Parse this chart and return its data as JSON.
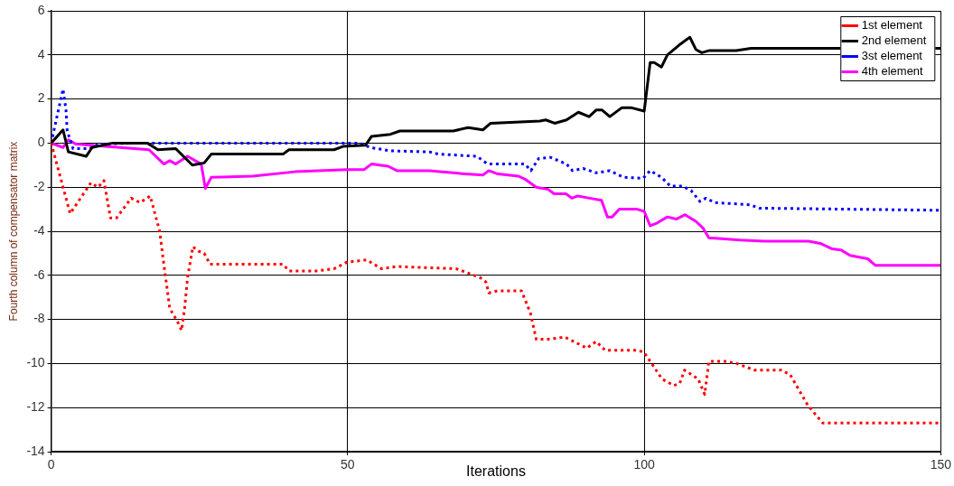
{
  "chart_data": {
    "type": "line",
    "xlabel": "Iterations",
    "ylabel": "Fourth column of compensator matrix",
    "xlim": [
      0,
      150
    ],
    "ylim": [
      -14,
      6
    ],
    "xticks": [
      0,
      50,
      100,
      150
    ],
    "yticks": [
      -14,
      -12,
      -10,
      -8,
      -6,
      -4,
      -2,
      0,
      2,
      4,
      6
    ],
    "grid": true,
    "legend": "top right",
    "marker": "none",
    "series": [
      {
        "name": "1st element",
        "color": "#ff0000",
        "line_style": "dotted",
        "x": [
          0,
          3.2,
          6.7,
          7.9,
          8.9,
          10,
          11,
          13.5,
          15,
          16.7,
          18.3,
          19,
          20,
          21.3,
          22,
          22.5,
          23,
          23.9,
          24.8,
          25.8,
          26.8,
          39.1,
          40.1,
          44.7,
          47.7,
          49.9,
          53.2,
          55.7,
          58.3,
          68.3,
          72.3,
          73.3,
          73.8,
          75.3,
          79.3,
          80.8,
          81.8,
          83.8,
          86.6,
          90.3,
          91.9,
          93.4,
          96.9,
          98.9,
          100,
          103,
          105,
          106,
          106.8,
          109.1,
          110.2,
          110.9,
          113.6,
          115.6,
          118.6,
          123.1,
          124.6,
          127.6,
          130.1,
          150
        ],
        "values": [
          0,
          -3.2,
          -1.8,
          -2,
          -1.7,
          -3.4,
          -3.4,
          -2.5,
          -2.7,
          -2.4,
          -4,
          -5.5,
          -7.5,
          -8.1,
          -8.5,
          -7.5,
          -6.1,
          -4.7,
          -4.9,
          -5,
          -5.5,
          -5.5,
          -5.8,
          -5.8,
          -5.7,
          -5.4,
          -5.3,
          -5.7,
          -5.6,
          -5.7,
          -6.1,
          -6.3,
          -6.8,
          -6.7,
          -6.7,
          -7.7,
          -8.9,
          -8.9,
          -8.8,
          -9.3,
          -9,
          -9.4,
          -9.4,
          -9.4,
          -9.5,
          -10.7,
          -11,
          -10.9,
          -10.3,
          -10.7,
          -11.4,
          -9.9,
          -9.9,
          -10,
          -10.3,
          -10.3,
          -10.5,
          -11.9,
          -12.7,
          -12.7
        ]
      },
      {
        "name": "2nd element",
        "color": "#000000",
        "line_style": "solid",
        "x": [
          0,
          2,
          2.9,
          5.9,
          6.9,
          10.4,
          16.2,
          18,
          21,
          23.8,
          25.8,
          27,
          39.1,
          40.1,
          47.7,
          49.2,
          53,
          54,
          57.2,
          58.8,
          67.8,
          70.3,
          72.8,
          74.1,
          82.4,
          83.4,
          84.9,
          86.9,
          88.9,
          90.7,
          91.9,
          92.9,
          94.2,
          96.2,
          97.9,
          100,
          101,
          101.7,
          102.9,
          103.9,
          105.9,
          107.7,
          108.7,
          109.7,
          111,
          115.5,
          118,
          150
        ],
        "values": [
          0,
          0.6,
          -0.4,
          -0.6,
          -0.2,
          0,
          0,
          -0.3,
          -0.25,
          -1,
          -0.9,
          -0.5,
          -0.5,
          -0.3,
          -0.3,
          -0.15,
          -0.1,
          0.3,
          0.4,
          0.55,
          0.55,
          0.7,
          0.6,
          0.9,
          1,
          1.05,
          0.9,
          1.05,
          1.4,
          1.2,
          1.5,
          1.5,
          1.2,
          1.6,
          1.6,
          1.45,
          3.65,
          3.65,
          3.45,
          4,
          4.45,
          4.8,
          4.25,
          4.1,
          4.2,
          4.2,
          4.3,
          4.3
        ]
      },
      {
        "name": "3st element",
        "color": "#0000ff",
        "line_style": "dotted",
        "x": [
          0,
          2,
          2.5,
          2.7,
          3.7,
          6.5,
          8,
          14,
          52,
          53.8,
          57.2,
          63.8,
          65.3,
          71.8,
          73.6,
          79.9,
          80.9,
          82.2,
          84.2,
          86.9,
          87.9,
          89.7,
          91.9,
          94.2,
          96.5,
          99.8,
          101,
          102.9,
          104.4,
          106.4,
          107.9,
          109.4,
          110.4,
          111.9,
          117.9,
          119.4,
          150
        ],
        "values": [
          0,
          2.45,
          1.5,
          0.55,
          -0.25,
          -0.25,
          -0.05,
          0,
          0,
          -0.2,
          -0.35,
          -0.4,
          -0.5,
          -0.6,
          -0.95,
          -0.95,
          -1.25,
          -0.7,
          -0.65,
          -0.95,
          -1.25,
          -1.15,
          -1.35,
          -1.25,
          -1.55,
          -1.6,
          -1.25,
          -1.55,
          -1.95,
          -1.95,
          -2.15,
          -2.65,
          -2.5,
          -2.7,
          -2.8,
          -2.95,
          -3.05
        ]
      },
      {
        "name": "4th element",
        "color": "#ff00ff",
        "line_style": "solid",
        "x": [
          0,
          2,
          2.9,
          4.2,
          16.5,
          19,
          20,
          21,
          23,
          25.3,
          26,
          27,
          34,
          41.1,
          49.9,
          52.8,
          54,
          56.8,
          58.3,
          63.8,
          69.8,
          72.8,
          73.8,
          75.3,
          78.8,
          80,
          81.8,
          83.8,
          84.8,
          86.8,
          87.8,
          88.8,
          90.8,
          92.8,
          93.8,
          94.6,
          95.8,
          98.8,
          100,
          101,
          102,
          103.9,
          105.4,
          106.9,
          108.7,
          109.9,
          110.9,
          116.2,
          120.2,
          127.7,
          129.7,
          131.7,
          133.2,
          134.7,
          137.7,
          139,
          150
        ],
        "values": [
          0,
          -0.2,
          0.15,
          -0.05,
          -0.3,
          -0.95,
          -0.8,
          -0.95,
          -0.6,
          -0.95,
          -2.05,
          -1.55,
          -1.5,
          -1.3,
          -1.2,
          -1.2,
          -0.95,
          -1.05,
          -1.25,
          -1.25,
          -1.4,
          -1.45,
          -1.25,
          -1.4,
          -1.5,
          -1.65,
          -2,
          -2.1,
          -2.3,
          -2.3,
          -2.5,
          -2.4,
          -2.5,
          -2.6,
          -3.35,
          -3.35,
          -3,
          -3,
          -3.1,
          -3.75,
          -3.65,
          -3.35,
          -3.45,
          -3.25,
          -3.55,
          -3.85,
          -4.3,
          -4.4,
          -4.45,
          -4.45,
          -4.55,
          -4.8,
          -4.85,
          -5.1,
          -5.25,
          -5.55,
          -5.55
        ]
      }
    ]
  }
}
